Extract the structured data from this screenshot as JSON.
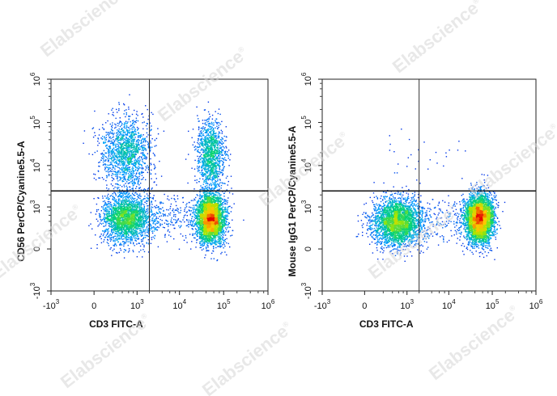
{
  "watermark": {
    "text": "Elabscience",
    "mark": "®"
  },
  "chart_data": [
    {
      "type": "scatter",
      "panel": "left",
      "xlabel": "CD3 FITC-A",
      "ylabel": "CD56 PerCP/Cyanine5.5-A",
      "x_scale": "biexponential",
      "y_scale": "biexponential",
      "xlim": [
        -1000,
        1000000
      ],
      "ylim": [
        -1000,
        1000000
      ],
      "x_ticks": [
        {
          "value": -1000,
          "base": "-10",
          "exp": "3"
        },
        {
          "value": 0,
          "base": "0",
          "exp": ""
        },
        {
          "value": 1000,
          "base": "10",
          "exp": "3"
        },
        {
          "value": 10000,
          "base": "10",
          "exp": "4"
        },
        {
          "value": 100000,
          "base": "10",
          "exp": "5"
        },
        {
          "value": 1000000,
          "base": "10",
          "exp": "6"
        }
      ],
      "y_ticks": [
        {
          "value": -1000,
          "base": "-10",
          "exp": "3"
        },
        {
          "value": 0,
          "base": "0",
          "exp": ""
        },
        {
          "value": 1000,
          "base": "10",
          "exp": "3"
        },
        {
          "value": 10000,
          "base": "10",
          "exp": "4"
        },
        {
          "value": 100000,
          "base": "10",
          "exp": "5"
        },
        {
          "value": 1000000,
          "base": "10",
          "exp": "6"
        }
      ],
      "gate": {
        "x": 2000,
        "y": 2500
      },
      "grid": false,
      "populations": [
        {
          "x": 500,
          "y": 500,
          "count": 2200
        },
        {
          "x": 500,
          "y": 20000,
          "count": 1500
        },
        {
          "x": 50000,
          "y": 500,
          "count": 3500
        },
        {
          "x": 50000,
          "y": 18000,
          "count": 1200
        },
        {
          "x": 8000,
          "y": 500,
          "count": 350
        }
      ]
    },
    {
      "type": "scatter",
      "panel": "right",
      "xlabel": "CD3 FITC-A",
      "ylabel": "Mouse IgG1 PerCP/Cyanine5.5-A",
      "x_scale": "biexponential",
      "y_scale": "biexponential",
      "xlim": [
        -1000,
        1000000
      ],
      "ylim": [
        -1000,
        1000000
      ],
      "x_ticks": [
        {
          "value": -1000,
          "base": "-10",
          "exp": "3"
        },
        {
          "value": 0,
          "base": "0",
          "exp": ""
        },
        {
          "value": 1000,
          "base": "10",
          "exp": "3"
        },
        {
          "value": 10000,
          "base": "10",
          "exp": "4"
        },
        {
          "value": 100000,
          "base": "10",
          "exp": "5"
        },
        {
          "value": 1000000,
          "base": "10",
          "exp": "6"
        }
      ],
      "y_ticks": [
        {
          "value": -1000,
          "base": "-10",
          "exp": "3"
        },
        {
          "value": 0,
          "base": "0",
          "exp": ""
        },
        {
          "value": 1000,
          "base": "10",
          "exp": "3"
        },
        {
          "value": 10000,
          "base": "10",
          "exp": "4"
        },
        {
          "value": 100000,
          "base": "10",
          "exp": "5"
        },
        {
          "value": 1000000,
          "base": "10",
          "exp": "6"
        }
      ],
      "gate": {
        "x": 2000,
        "y": 2500
      },
      "grid": false,
      "populations": [
        {
          "x": 500,
          "y": 400,
          "count": 2800
        },
        {
          "x": 50000,
          "y": 500,
          "count": 3800
        },
        {
          "x": 8000,
          "y": 400,
          "count": 300
        },
        {
          "x": 3000,
          "y": 15000,
          "count": 30
        }
      ]
    }
  ]
}
